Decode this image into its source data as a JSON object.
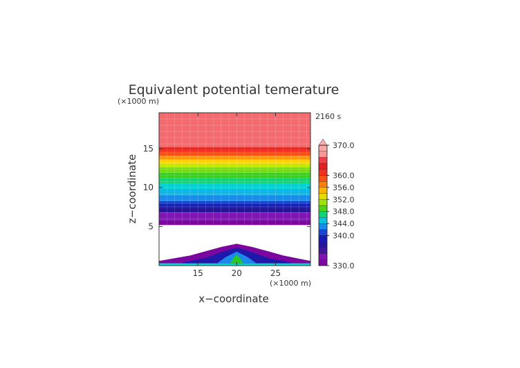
{
  "chart_data": {
    "type": "heatmap",
    "title": "Equivalent potential temerature",
    "xlabel": "x−coordinate",
    "ylabel": "z−coordinate",
    "x_unit": "(×1000 m)",
    "y_unit": "(×1000 m)",
    "time_label": "2160 s",
    "xlim": [
      10,
      29.5
    ],
    "ylim": [
      0,
      19.6
    ],
    "x_ticks": [
      "15",
      "20",
      "25"
    ],
    "y_ticks": [
      "5",
      "10",
      "15"
    ],
    "colorbar": {
      "min": 330.0,
      "max": 370.0,
      "tick_labels": [
        "370.0",
        "360.0",
        "356.0",
        "352.0",
        "348.0",
        "344.0",
        "340.0",
        "330.0"
      ],
      "tick_values": [
        370,
        360,
        356,
        352,
        348,
        344,
        340,
        330
      ]
    },
    "layers": [
      {
        "z0": 0.0,
        "z1": 0.4,
        "value": 346
      },
      {
        "z0": 5.2,
        "z1": 5.8,
        "value": 331
      },
      {
        "z0": 5.8,
        "z1": 6.8,
        "value": 333
      },
      {
        "z0": 6.8,
        "z1": 7.4,
        "value": 336
      },
      {
        "z0": 7.4,
        "z1": 7.9,
        "value": 339
      },
      {
        "z0": 7.9,
        "z1": 8.3,
        "value": 341
      },
      {
        "z0": 8.3,
        "z1": 9.0,
        "value": 343
      },
      {
        "z0": 9.0,
        "z1": 9.8,
        "value": 344.5
      },
      {
        "z0": 9.8,
        "z1": 10.5,
        "value": 345.5
      },
      {
        "z0": 10.5,
        "z1": 11.2,
        "value": 347
      },
      {
        "z0": 11.2,
        "z1": 11.9,
        "value": 348.5
      },
      {
        "z0": 11.9,
        "z1": 12.6,
        "value": 350
      },
      {
        "z0": 12.6,
        "z1": 13.1,
        "value": 352
      },
      {
        "z0": 13.1,
        "z1": 13.6,
        "value": 354
      },
      {
        "z0": 13.6,
        "z1": 14.1,
        "value": 356
      },
      {
        "z0": 14.1,
        "z1": 14.6,
        "value": 359
      },
      {
        "z0": 14.6,
        "z1": 15.2,
        "value": 362
      },
      {
        "z0": 15.2,
        "z1": 19.6,
        "value": 366
      }
    ],
    "mound": {
      "base": 0.3,
      "outer": {
        "x": [
          10,
          14,
          18,
          20,
          22,
          26,
          29.5
        ],
        "z": [
          0.6,
          1.3,
          2.4,
          2.8,
          2.4,
          1.3,
          0.6
        ],
        "value": 331
      },
      "inner": {
        "x": [
          13,
          16,
          18.5,
          20,
          21.5,
          24,
          27
        ],
        "z": [
          0.4,
          1.0,
          1.9,
          2.3,
          1.9,
          1.0,
          0.4
        ],
        "value": 338
      },
      "core": {
        "x": [
          17.6,
          18.6,
          20,
          21.4,
          22.4
        ],
        "z": [
          0.4,
          1.1,
          1.8,
          1.1,
          0.4
        ],
        "value": 343
      },
      "plume": {
        "x": [
          19.2,
          19.6,
          20,
          20.4,
          20.8
        ],
        "z": [
          0.4,
          1.0,
          1.4,
          1.0,
          0.4
        ],
        "value": 348
      }
    }
  }
}
